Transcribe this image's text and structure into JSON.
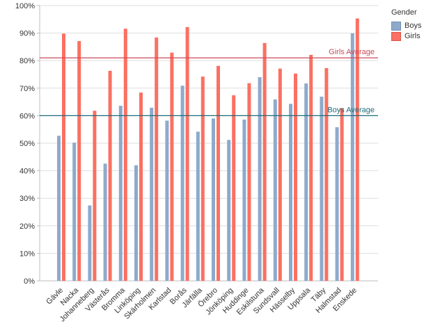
{
  "chart_data": {
    "type": "bar",
    "legend": {
      "title": "Gender",
      "placement": "top-right",
      "entries": [
        "Boys",
        "Girls"
      ]
    },
    "categories": [
      "Gävle",
      "Nacka",
      "Johanneberg",
      "Västerås",
      "Bromma",
      "Linköping",
      "Skärholmen",
      "Karlstad",
      "Borås",
      "Järfälla",
      "Örebro",
      "Jönköping",
      "Huddinge",
      "Eskilstuna",
      "Sundsvall",
      "Hässelby",
      "Uppsala",
      "Täby",
      "Halmstad",
      "Enskede"
    ],
    "series": [
      {
        "name": "Boys",
        "color": "#8eaacb",
        "values": [
          52.7,
          50.2,
          27.4,
          42.6,
          63.6,
          42.0,
          62.9,
          58.2,
          70.9,
          54.2,
          59.0,
          51.2,
          58.6,
          74.0,
          65.9,
          64.3,
          71.7,
          66.9,
          55.8,
          89.9
        ]
      },
      {
        "name": "Girls",
        "color": "#fb7062",
        "values": [
          89.8,
          87.1,
          61.8,
          76.3,
          91.6,
          68.4,
          88.4,
          82.9,
          92.2,
          74.2,
          78.1,
          67.4,
          71.8,
          86.4,
          77.1,
          75.3,
          82.1,
          77.3,
          62.7,
          95.3
        ]
      }
    ],
    "reference_lines": [
      {
        "label": "Girls Average",
        "value": 81.0,
        "color": "#cc4a58"
      },
      {
        "label": "Boys Average",
        "value": 60.0,
        "color": "#1b6b78"
      }
    ],
    "ylim": [
      0,
      100
    ],
    "yticks": [
      0,
      10,
      20,
      30,
      40,
      50,
      60,
      70,
      80,
      90,
      100
    ],
    "ytick_labels": [
      "0%",
      "10%",
      "20%",
      "30%",
      "40%",
      "50%",
      "60%",
      "70%",
      "80%",
      "90%",
      "100%"
    ],
    "grid": true,
    "title": "",
    "xlabel": "",
    "ylabel": ""
  }
}
